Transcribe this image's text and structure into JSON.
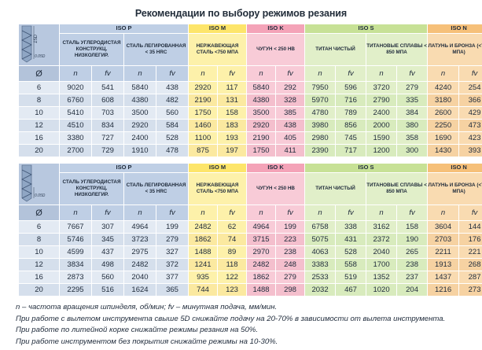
{
  "title": "Рекомендации по выбору режимов резания",
  "header": {
    "groups": [
      "ISO P",
      "ISO M",
      "ISO K",
      "ISO S",
      "ISO N"
    ],
    "materials": [
      "СТАЛЬ УГЛЕРОДИСТАЯ КОНСТРУКЦ. НИЗКОЛЕГИР.",
      "СТАЛЬ ЛЕГИРОВАННАЯ < 35 HRC",
      "НЕРЖАВЕЮЩАЯ СТАЛЬ <750 МПА",
      "ЧУГУН < 250 HB",
      "ТИТАН ЧИСТЫЙ",
      "ТИТАНОВЫЕ СПЛАВЫ < 850 МПА",
      "ЛАТУНЬ И БРОНЗА (<700 МПА)"
    ],
    "materials_t2": [
      "СТАЛЬ УГЛЕРОДИСТАЯ КОНСТРУКЦ. НИЗКОЛЕГИР.",
      "СТАЛЬ ЛЕГИРОВАННАЯ < 35 HRC",
      "НЕРЖАВЕЮЩАЯ СТАЛЬ <750 МПА",
      "ЧУГУН < 250 HB",
      "ТИТАН ЧИСТЫЙ",
      "ТИТАНОВЫЕ СПЛАВЫ < 850 МПА",
      "ЛАТУНЬ И БРОНЗА (<700 МПА)"
    ],
    "diameter_symbol": "Ø",
    "n_label": "n",
    "fv_label": "fv",
    "drill_label_top": "15D",
    "drill_label_bottom": "0.05D",
    "drill_label_bottom2": "0.05D"
  },
  "table1": {
    "rows": [
      {
        "d": "6",
        "v": [
          "9020",
          "541",
          "5840",
          "438",
          "2920",
          "117",
          "5840",
          "292",
          "7950",
          "596",
          "3720",
          "279",
          "4240",
          "254"
        ]
      },
      {
        "d": "8",
        "v": [
          "6760",
          "608",
          "4380",
          "482",
          "2190",
          "131",
          "4380",
          "328",
          "5970",
          "716",
          "2790",
          "335",
          "3180",
          "366"
        ]
      },
      {
        "d": "10",
        "v": [
          "5410",
          "703",
          "3500",
          "560",
          "1750",
          "158",
          "3500",
          "385",
          "4780",
          "789",
          "2400",
          "384",
          "2600",
          "429"
        ]
      },
      {
        "d": "12",
        "v": [
          "4510",
          "834",
          "2920",
          "584",
          "1460",
          "183",
          "2920",
          "438",
          "3980",
          "856",
          "2000",
          "380",
          "2250",
          "473"
        ]
      },
      {
        "d": "16",
        "v": [
          "3380",
          "727",
          "2400",
          "528",
          "1100",
          "193",
          "2190",
          "405",
          "2980",
          "745",
          "1590",
          "358",
          "1690",
          "423"
        ]
      },
      {
        "d": "20",
        "v": [
          "2700",
          "729",
          "1910",
          "478",
          "875",
          "197",
          "1750",
          "411",
          "2390",
          "717",
          "1200",
          "300",
          "1430",
          "393"
        ]
      }
    ]
  },
  "table2": {
    "rows": [
      {
        "d": "6",
        "v": [
          "7667",
          "307",
          "4964",
          "199",
          "2482",
          "62",
          "4964",
          "199",
          "6758",
          "338",
          "3162",
          "158",
          "3604",
          "144"
        ]
      },
      {
        "d": "8",
        "v": [
          "5746",
          "345",
          "3723",
          "279",
          "1862",
          "74",
          "3715",
          "223",
          "5075",
          "431",
          "2372",
          "190",
          "2703",
          "176"
        ]
      },
      {
        "d": "10",
        "v": [
          "4599",
          "437",
          "2975",
          "327",
          "1488",
          "89",
          "2970",
          "238",
          "4063",
          "528",
          "2040",
          "265",
          "2211",
          "221"
        ]
      },
      {
        "d": "12",
        "v": [
          "3834",
          "498",
          "2482",
          "372",
          "1241",
          "118",
          "2482",
          "248",
          "3383",
          "558",
          "1700",
          "238",
          "1913",
          "268"
        ]
      },
      {
        "d": "16",
        "v": [
          "2873",
          "560",
          "2040",
          "377",
          "935",
          "122",
          "1862",
          "279",
          "2533",
          "519",
          "1352",
          "237",
          "1437",
          "287"
        ]
      },
      {
        "d": "20",
        "v": [
          "2295",
          "516",
          "1624",
          "365",
          "744",
          "123",
          "1488",
          "298",
          "2032",
          "467",
          "1020",
          "204",
          "1216",
          "273"
        ]
      }
    ]
  },
  "notes": [
    "n – частота вращения шпинделя, об/мин; fv – минутная подача, мм/мин.",
    "При работе с вылетом инструмента свыше 5D снижайте подачу на 20-70% в зависимости от вылета инструмента.",
    "При работе по литейной корке снижайте режимы резания на 50%.",
    "При работе инструментом без покрытия снижайте режимы на 10-30%."
  ]
}
